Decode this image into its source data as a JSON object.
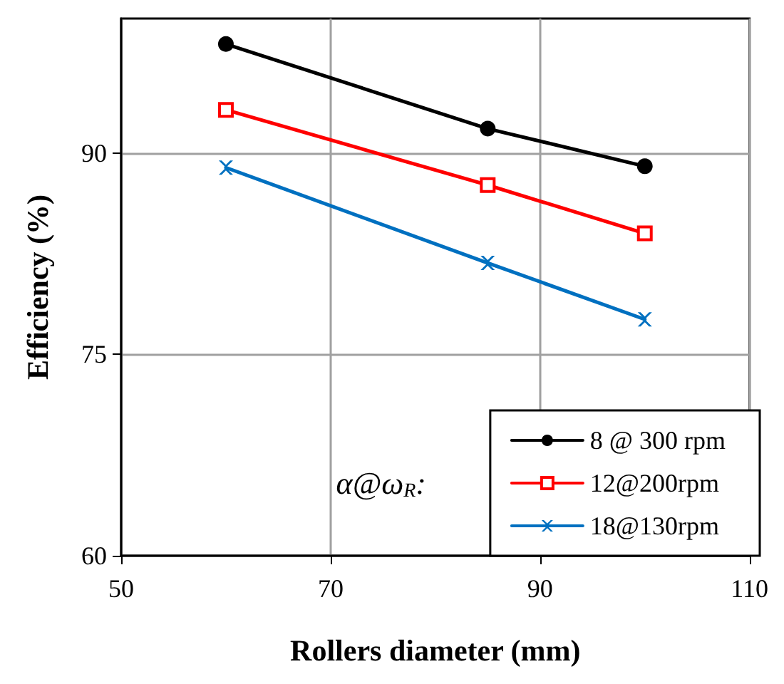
{
  "chart_data": {
    "type": "line",
    "xlabel": "Rollers diameter (mm)",
    "ylabel": "Efficiency (%)",
    "legend_title": "α@ω$_{R}$:",
    "x": [
      60,
      85,
      100
    ],
    "series": [
      {
        "name": "8 @ 300 rpm",
        "color": "#000000",
        "marker": "circle",
        "values": [
          98.1,
          91.8,
          89.0
        ]
      },
      {
        "name": "12@200rpm",
        "color": "#ff0000",
        "marker": "square",
        "values": [
          93.2,
          87.6,
          84.0
        ]
      },
      {
        "name": "18@130rpm",
        "color": "#0070c0",
        "marker": "cross",
        "values": [
          88.9,
          81.8,
          77.6
        ]
      }
    ],
    "xlim": [
      50,
      110
    ],
    "xticks": [
      50,
      70,
      90,
      110
    ],
    "ylim": [
      60,
      100
    ],
    "yticks": [
      60,
      75,
      90
    ],
    "grid": true,
    "legend": "bottom right",
    "line_style": "solid"
  }
}
